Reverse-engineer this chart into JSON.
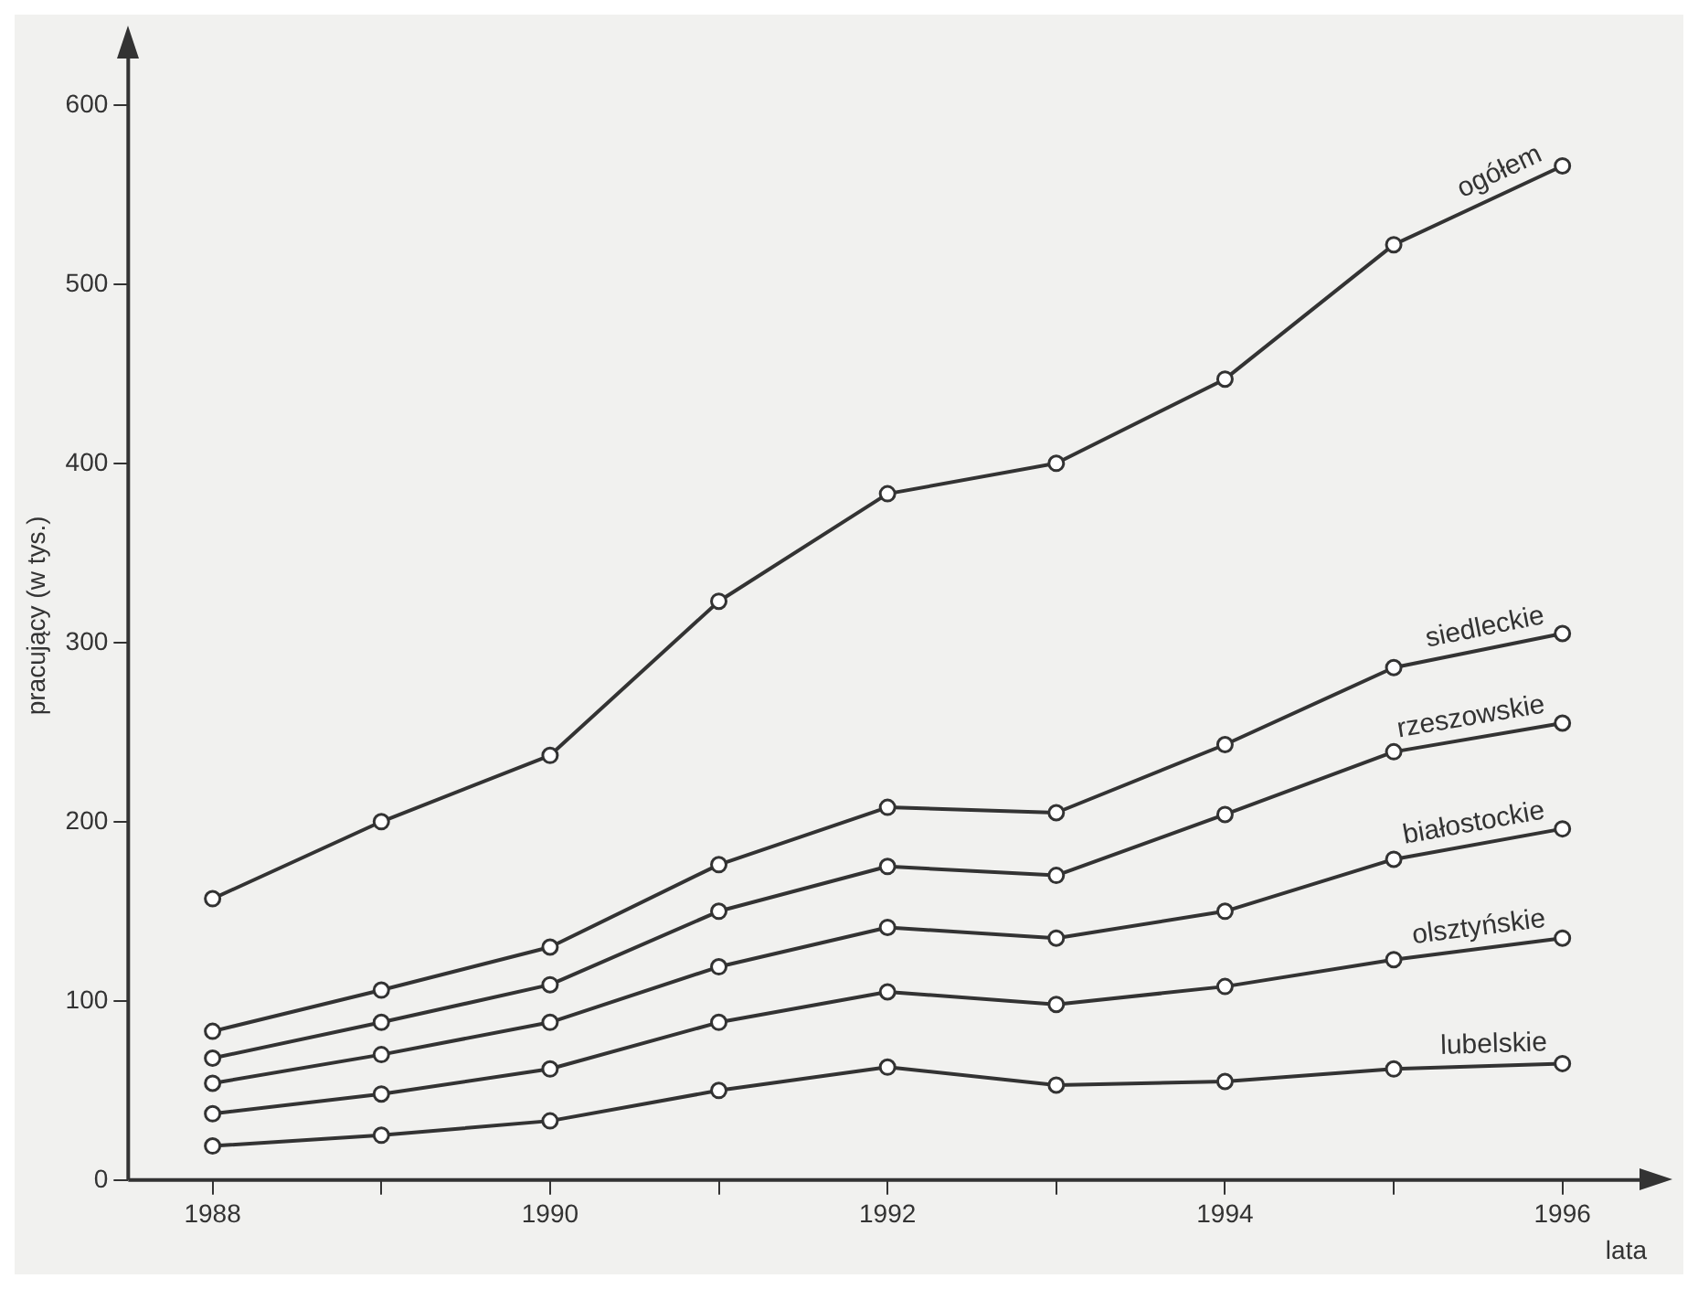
{
  "chart_data": {
    "type": "line",
    "xlabel": "lata",
    "ylabel": "pracujący (w tys.)",
    "x": [
      1988,
      1989,
      1990,
      1991,
      1992,
      1993,
      1994,
      1995,
      1996
    ],
    "series": [
      {
        "name": "ogółem",
        "color": "#333333",
        "values": [
          157,
          200,
          237,
          323,
          383,
          400,
          447,
          522,
          566
        ]
      },
      {
        "name": "siedleckie",
        "color": "#333333",
        "values": [
          83,
          106,
          130,
          176,
          208,
          205,
          243,
          286,
          305
        ]
      },
      {
        "name": "rzeszowskie",
        "color": "#333333",
        "values": [
          68,
          88,
          109,
          150,
          175,
          170,
          204,
          239,
          255
        ]
      },
      {
        "name": "białostockie",
        "color": "#333333",
        "values": [
          54,
          70,
          88,
          119,
          141,
          135,
          150,
          179,
          196
        ]
      },
      {
        "name": "olsztyńskie",
        "color": "#333333",
        "values": [
          37,
          48,
          62,
          88,
          105,
          98,
          108,
          123,
          135
        ]
      },
      {
        "name": "lubelskie",
        "color": "#333333",
        "values": [
          19,
          25,
          33,
          50,
          63,
          53,
          55,
          62,
          65
        ]
      }
    ],
    "xlim": [
      1987.5,
      1996.5
    ],
    "xticks": [
      1988,
      {
        "value": 1989,
        "label": null
      },
      1990,
      {
        "value": 1991,
        "label": null
      },
      1992,
      {
        "value": 1993,
        "label": null
      },
      1994,
      {
        "value": 1995,
        "label": null
      },
      1996
    ],
    "ylim": [
      0,
      630
    ],
    "yticks": [
      0,
      100,
      200,
      300,
      400,
      500,
      600
    ],
    "grid": false,
    "legend": false,
    "marker": "circle",
    "line_style": "solid"
  }
}
